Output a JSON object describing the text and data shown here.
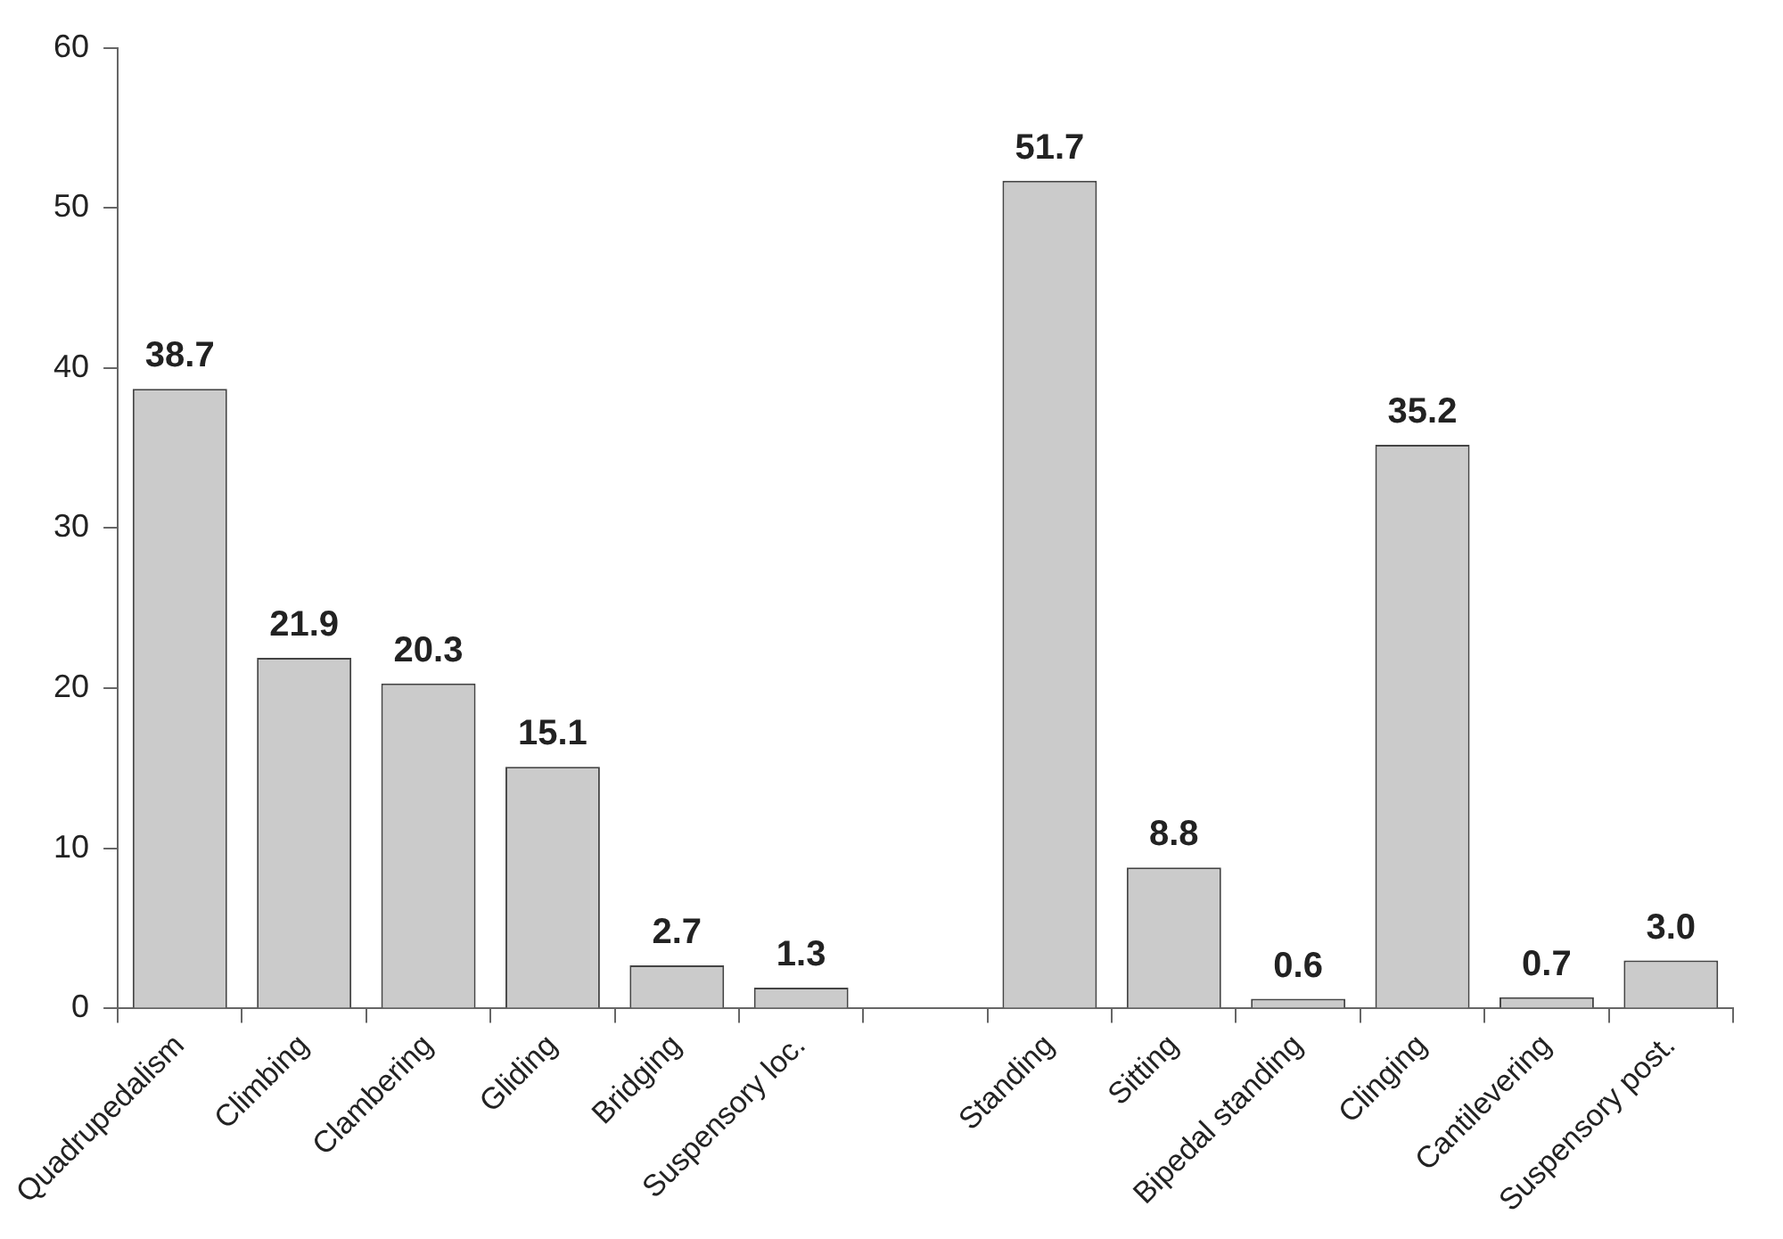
{
  "chart_data": {
    "type": "bar",
    "categories": [
      "Quadrupedalism",
      "Climbing",
      "Clambering",
      "Gliding",
      "Bridging",
      "Suspensory loc.",
      null,
      "Standing",
      "Sitting",
      "Bipedal standing",
      "Clinging",
      "Cantilevering",
      "Suspensory post."
    ],
    "values": [
      38.7,
      21.9,
      20.3,
      15.1,
      2.7,
      1.3,
      null,
      51.7,
      8.8,
      0.6,
      35.2,
      0.7,
      3.0
    ],
    "value_labels": [
      "38.7",
      "21.9",
      "20.3",
      "15.1",
      "2.7",
      "1.3",
      null,
      "51.7",
      "8.8",
      "0.6",
      "35.2",
      "0.7",
      "3.0"
    ],
    "color": "#cbcbcb",
    "ylim": [
      0,
      60
    ],
    "yticks": [
      0,
      10,
      20,
      30,
      40,
      50,
      60
    ],
    "grid": false,
    "legend": false
  }
}
